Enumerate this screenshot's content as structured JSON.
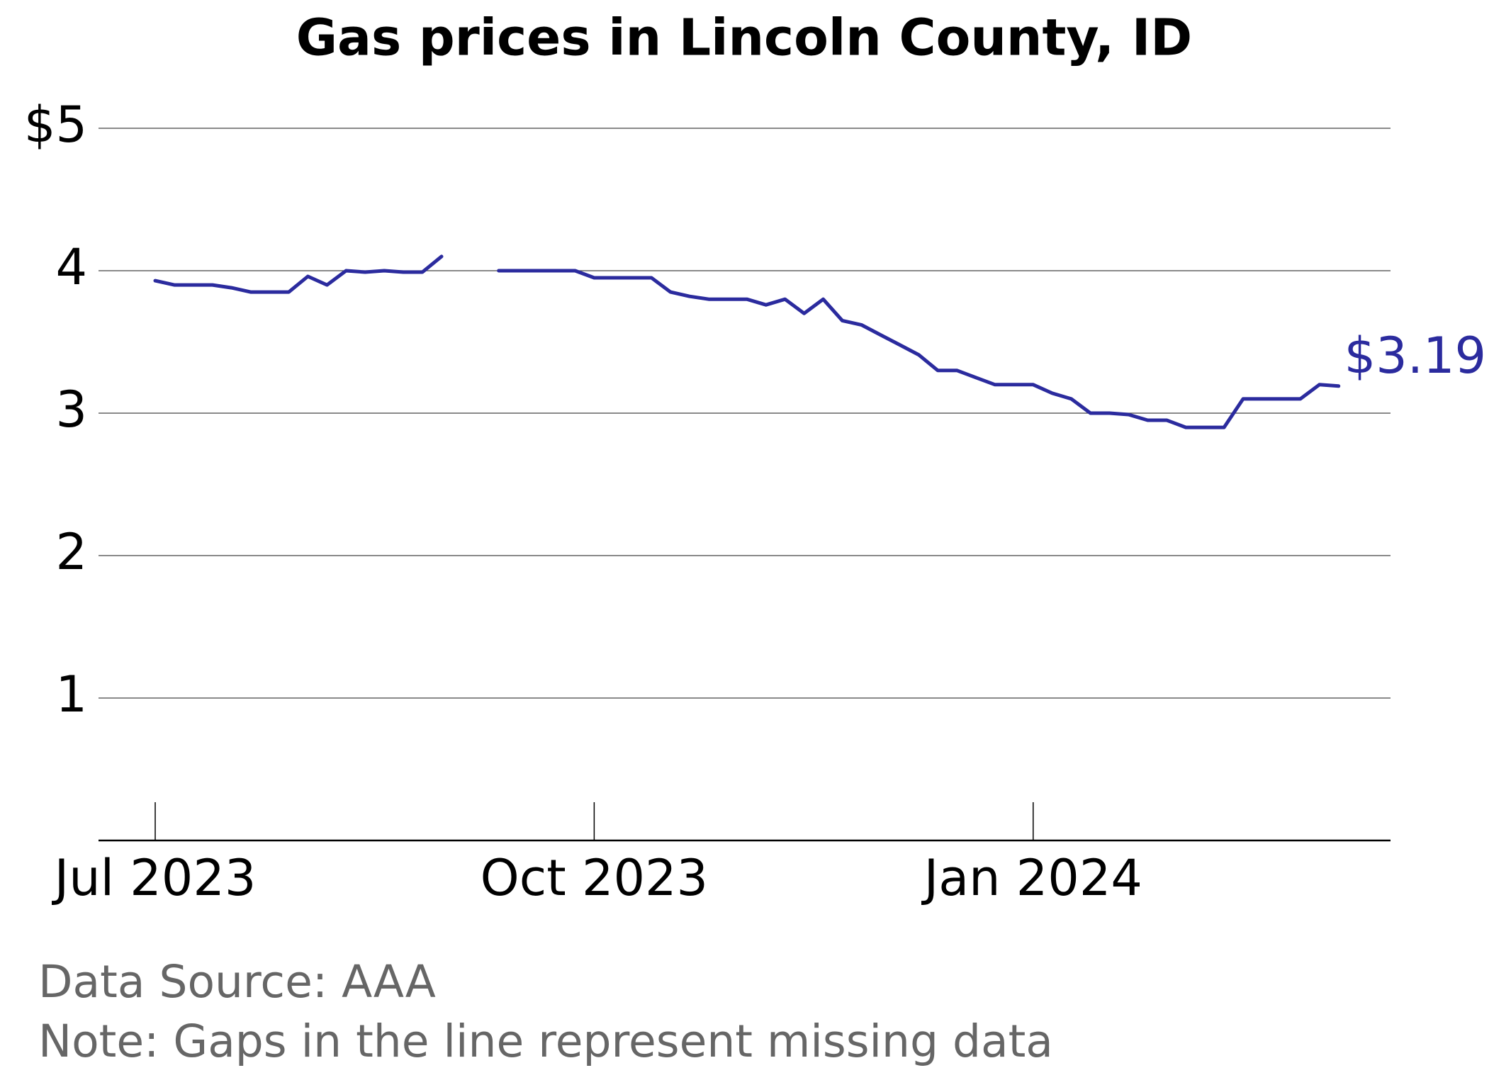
{
  "chart_data": {
    "type": "line",
    "title": "Gas prices in Lincoln County, ID",
    "source": "Data Source: AAA",
    "note": "Note: Gaps in the line represent missing data",
    "categories": [
      "Jul 2023",
      null,
      null,
      null,
      null,
      null,
      null,
      null,
      null,
      null,
      null,
      null,
      null,
      null,
      null,
      null,
      null,
      null,
      null,
      null,
      null,
      null,
      null,
      "Oct 2023",
      null,
      null,
      null,
      null,
      null,
      null,
      null,
      null,
      null,
      null,
      null,
      null,
      null,
      null,
      null,
      null,
      null,
      null,
      null,
      null,
      null,
      null,
      "Jan 2024",
      null,
      null,
      null,
      null,
      null,
      null,
      null,
      null,
      null,
      null,
      null,
      null,
      null,
      null,
      null,
      null
    ],
    "series": [
      {
        "name": "Lincoln County",
        "color": "#2b2b9e",
        "values": [
          3.93,
          3.9,
          3.9,
          3.9,
          3.88,
          3.85,
          3.85,
          3.85,
          3.96,
          3.9,
          4.0,
          3.99,
          4.0,
          3.99,
          3.99,
          4.1,
          null,
          null,
          4.0,
          4.0,
          4.0,
          4.0,
          4.0,
          3.95,
          3.95,
          3.95,
          3.95,
          3.85,
          3.82,
          3.8,
          3.8,
          3.8,
          3.76,
          3.8,
          3.7,
          3.8,
          3.65,
          3.62,
          3.55,
          3.48,
          3.41,
          3.3,
          3.3,
          3.25,
          3.2,
          3.2,
          3.2,
          3.14,
          3.1,
          3.0,
          3.0,
          2.99,
          2.95,
          2.95,
          2.9,
          2.9,
          2.9,
          3.1,
          3.1,
          3.1,
          3.1,
          3.2,
          3.19
        ],
        "value_labels": [
          null,
          null,
          null,
          null,
          null,
          null,
          null,
          null,
          null,
          null,
          null,
          null,
          null,
          null,
          null,
          null,
          null,
          null,
          null,
          null,
          null,
          null,
          null,
          null,
          null,
          null,
          null,
          null,
          null,
          null,
          null,
          null,
          null,
          null,
          null,
          null,
          null,
          null,
          null,
          null,
          null,
          null,
          null,
          null,
          null,
          null,
          null,
          null,
          null,
          null,
          null,
          null,
          null,
          null,
          null,
          null,
          null,
          null,
          null,
          null,
          null,
          null,
          "$3.19"
        ]
      }
    ],
    "ylim": [
      0,
      5
    ],
    "yticks": [
      1,
      2,
      3,
      4,
      {
        "value": 5,
        "label": "$5"
      }
    ],
    "grid": true
  }
}
